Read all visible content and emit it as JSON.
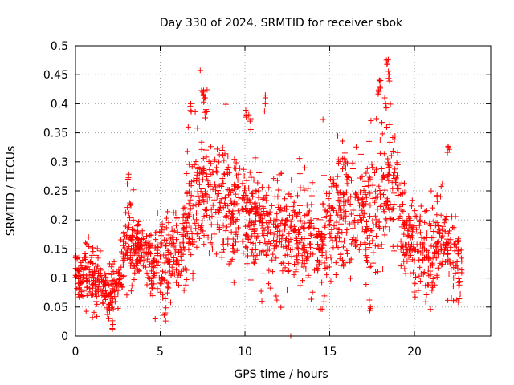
{
  "chart_data": {
    "type": "scatter",
    "title": "Day 330 of 2024, SRMTID for receiver sbok",
    "xlabel": "GPS time / hours",
    "ylabel": "SRMTID / TECUs",
    "xlim": [
      0,
      24.5
    ],
    "ylim": [
      0,
      0.5
    ],
    "x_ticks": [
      0,
      5,
      10,
      15,
      20
    ],
    "x_tick_labels": [
      "0",
      "5",
      "10",
      "15",
      "20"
    ],
    "y_ticks": [
      0,
      0.05,
      0.1,
      0.15,
      0.2,
      0.25,
      0.3,
      0.35,
      0.4,
      0.45,
      0.5
    ],
    "y_tick_labels": [
      "0",
      "0.05",
      "0.1",
      "0.15",
      "0.2",
      "0.25",
      "0.3",
      "0.35",
      "0.4",
      "0.45",
      "0.5"
    ],
    "grid": true,
    "marker": "+",
    "color": "#ff0000",
    "series": [
      {
        "name": "SRMTID",
        "description": "Per-observation SRMTID values (TECU) vs GPS time (hours); approximate trend envelope sampled from the figure",
        "trend": [
          {
            "x": 0.0,
            "center": 0.1,
            "spread": 0.03
          },
          {
            "x": 1.0,
            "center": 0.1,
            "spread": 0.035
          },
          {
            "x": 2.0,
            "center": 0.07,
            "spread": 0.03
          },
          {
            "x": 2.6,
            "center": 0.1,
            "spread": 0.03
          },
          {
            "x": 3.0,
            "center": 0.15,
            "spread": 0.04
          },
          {
            "x": 4.0,
            "center": 0.16,
            "spread": 0.04
          },
          {
            "x": 4.5,
            "center": 0.12,
            "spread": 0.04
          },
          {
            "x": 5.0,
            "center": 0.13,
            "spread": 0.05
          },
          {
            "x": 6.0,
            "center": 0.14,
            "spread": 0.05
          },
          {
            "x": 6.8,
            "center": 0.2,
            "spread": 0.07
          },
          {
            "x": 7.5,
            "center": 0.24,
            "spread": 0.08
          },
          {
            "x": 8.5,
            "center": 0.22,
            "spread": 0.06
          },
          {
            "x": 9.5,
            "center": 0.21,
            "spread": 0.06
          },
          {
            "x": 10.5,
            "center": 0.19,
            "spread": 0.06
          },
          {
            "x": 11.5,
            "center": 0.18,
            "spread": 0.06
          },
          {
            "x": 12.5,
            "center": 0.17,
            "spread": 0.06
          },
          {
            "x": 13.5,
            "center": 0.17,
            "spread": 0.06
          },
          {
            "x": 14.5,
            "center": 0.15,
            "spread": 0.05
          },
          {
            "x": 15.5,
            "center": 0.22,
            "spread": 0.07
          },
          {
            "x": 16.5,
            "center": 0.19,
            "spread": 0.07
          },
          {
            "x": 17.5,
            "center": 0.2,
            "spread": 0.07
          },
          {
            "x": 18.5,
            "center": 0.26,
            "spread": 0.08
          },
          {
            "x": 19.0,
            "center": 0.25,
            "spread": 0.07
          },
          {
            "x": 19.5,
            "center": 0.16,
            "spread": 0.05
          },
          {
            "x": 20.5,
            "center": 0.15,
            "spread": 0.05
          },
          {
            "x": 21.0,
            "center": 0.12,
            "spread": 0.05
          },
          {
            "x": 21.5,
            "center": 0.17,
            "spread": 0.05
          },
          {
            "x": 22.3,
            "center": 0.14,
            "spread": 0.06
          },
          {
            "x": 22.8,
            "center": 0.11,
            "spread": 0.04
          }
        ],
        "outliers": [
          {
            "x": 6.8,
            "y": 0.4
          },
          {
            "x": 7.5,
            "y": 0.42
          },
          {
            "x": 7.6,
            "y": 0.41
          },
          {
            "x": 7.7,
            "y": 0.39
          },
          {
            "x": 10.1,
            "y": 0.38
          },
          {
            "x": 10.3,
            "y": 0.37
          },
          {
            "x": 11.2,
            "y": 0.4
          },
          {
            "x": 12.7,
            "y": 0.0
          },
          {
            "x": 17.9,
            "y": 0.42
          },
          {
            "x": 18.0,
            "y": 0.44
          },
          {
            "x": 18.4,
            "y": 0.47
          },
          {
            "x": 18.5,
            "y": 0.45
          },
          {
            "x": 18.3,
            "y": 0.4
          },
          {
            "x": 22.0,
            "y": 0.325
          },
          {
            "x": 3.1,
            "y": 0.27
          },
          {
            "x": 5.3,
            "y": 0.04
          },
          {
            "x": 2.2,
            "y": 0.02
          },
          {
            "x": 17.4,
            "y": 0.05
          }
        ]
      }
    ]
  }
}
